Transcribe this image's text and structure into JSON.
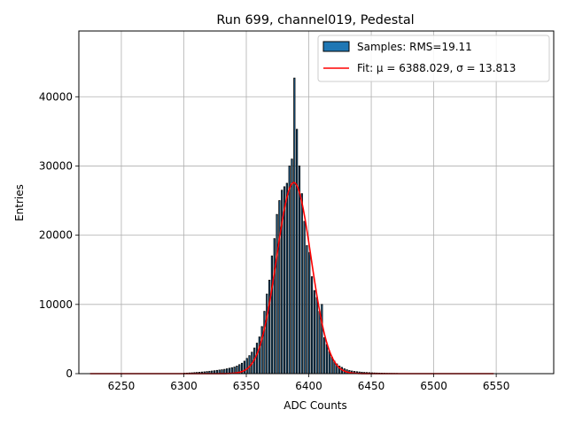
{
  "chart_data": {
    "type": "bar",
    "title": "Run 699, channel019, Pedestal",
    "xlabel": "ADC Counts",
    "ylabel": "Entries",
    "xlim": [
      6216,
      6596
    ],
    "ylim": [
      0,
      49500
    ],
    "xticks": [
      6250,
      6300,
      6350,
      6400,
      6450,
      6500,
      6550
    ],
    "yticks": [
      0,
      10000,
      20000,
      30000,
      40000
    ],
    "grid": true,
    "legend_position": "upper right",
    "legend": [
      {
        "label": "Samples: RMS=19.11",
        "kind": "patch"
      },
      {
        "label": "Fit: μ = 6388.029, σ = 13.813",
        "kind": "line"
      }
    ],
    "colors": {
      "bars": "#1f77b4",
      "bar_edge": "#000000",
      "fit": "#ff0000",
      "grid": "#b0b0b0"
    },
    "histogram": {
      "bin_width": 1,
      "x": [
        6300,
        6302,
        6304,
        6306,
        6308,
        6310,
        6312,
        6314,
        6316,
        6318,
        6320,
        6322,
        6324,
        6326,
        6328,
        6330,
        6332,
        6334,
        6336,
        6338,
        6340,
        6342,
        6344,
        6346,
        6348,
        6350,
        6352,
        6354,
        6356,
        6358,
        6360,
        6362,
        6364,
        6366,
        6368,
        6370,
        6372,
        6374,
        6376,
        6378,
        6380,
        6382,
        6384,
        6386,
        6388,
        6390,
        6392,
        6394,
        6396,
        6398,
        6400,
        6402,
        6404,
        6406,
        6408,
        6410,
        6412,
        6414,
        6416,
        6418,
        6420,
        6422,
        6424,
        6426,
        6428,
        6430,
        6432,
        6434,
        6436,
        6438,
        6440,
        6442,
        6444,
        6446,
        6448,
        6450,
        6452,
        6454,
        6456,
        6458,
        6460,
        6462,
        6464,
        6466,
        6468,
        6470
      ],
      "counts": [
        60,
        80,
        100,
        120,
        150,
        180,
        200,
        230,
        260,
        300,
        340,
        380,
        420,
        470,
        520,
        560,
        620,
        700,
        780,
        860,
        950,
        1100,
        1300,
        1500,
        1800,
        2200,
        2600,
        3100,
        3700,
        4400,
        5300,
        6800,
        9000,
        11500,
        13500,
        17000,
        19500,
        23000,
        25000,
        26500,
        27000,
        27500,
        30000,
        31000,
        42700,
        35300,
        30000,
        26000,
        22000,
        18500,
        17500,
        14000,
        12000,
        11000,
        9000,
        10000,
        5200,
        4200,
        3200,
        2400,
        1800,
        1400,
        1100,
        900,
        700,
        560,
        450,
        380,
        320,
        280,
        240,
        210,
        180,
        160,
        140,
        120,
        100,
        90,
        80,
        70,
        60,
        50,
        45,
        40,
        35,
        30
      ]
    },
    "fit": {
      "type": "gaussian",
      "mu": 6388.029,
      "sigma": 13.813,
      "amplitude": 27600,
      "x_range": [
        6225,
        6548
      ]
    }
  }
}
